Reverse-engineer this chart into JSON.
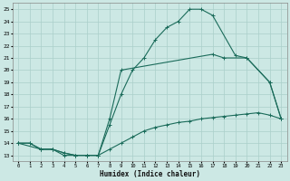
{
  "xlabel": "Humidex (Indice chaleur)",
  "bg_color": "#cce8e4",
  "grid_color": "#aacfca",
  "line_color": "#1a6b5a",
  "xlim": [
    -0.5,
    23.5
  ],
  "ylim": [
    12.5,
    25.5
  ],
  "xticks": [
    0,
    1,
    2,
    3,
    4,
    5,
    6,
    7,
    8,
    9,
    10,
    11,
    12,
    13,
    14,
    15,
    16,
    17,
    18,
    19,
    20,
    21,
    22,
    23
  ],
  "yticks": [
    13,
    14,
    15,
    16,
    17,
    18,
    19,
    20,
    21,
    22,
    23,
    24,
    25
  ],
  "curve_upper": {
    "x": [
      0,
      1,
      2,
      3,
      4,
      5,
      6,
      7,
      8,
      9,
      10,
      11,
      12,
      13,
      14,
      15,
      16,
      17,
      19,
      20,
      22,
      23
    ],
    "y": [
      14,
      14,
      13.5,
      13.5,
      13,
      13,
      13,
      13,
      15.5,
      18,
      20,
      21,
      22.5,
      23.5,
      24.0,
      25.0,
      25.0,
      24.5,
      21.2,
      21.0,
      19.0,
      16.0
    ]
  },
  "curve_lower": {
    "x": [
      0,
      1,
      2,
      3,
      4,
      5,
      6,
      7,
      8,
      9,
      10,
      11,
      12,
      13,
      14,
      15,
      16,
      17,
      18,
      19,
      20,
      21,
      22,
      23
    ],
    "y": [
      14,
      14,
      13.5,
      13.5,
      13.2,
      13.0,
      13.0,
      13.0,
      13.5,
      14.0,
      14.5,
      15.0,
      15.3,
      15.5,
      15.7,
      15.8,
      16.0,
      16.1,
      16.2,
      16.3,
      16.4,
      16.5,
      16.3,
      16.0
    ]
  },
  "curve_mid": {
    "x": [
      0,
      2,
      3,
      4,
      5,
      6,
      7,
      8,
      9,
      17,
      18,
      20,
      22,
      23
    ],
    "y": [
      14,
      13.5,
      13.5,
      13.2,
      13.0,
      13.0,
      13.0,
      16.0,
      20.0,
      21.3,
      21.0,
      21.0,
      19.0,
      16.0
    ]
  }
}
